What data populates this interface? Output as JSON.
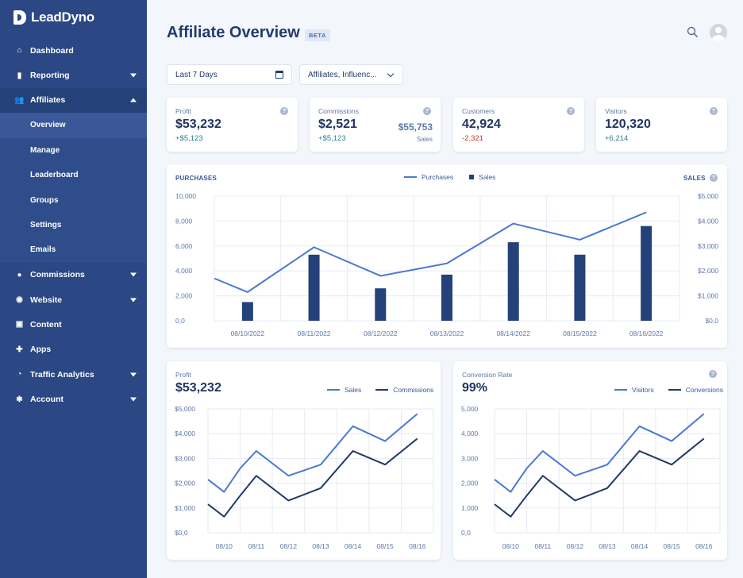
{
  "brand": {
    "name": "LeadDyno"
  },
  "sidebar": {
    "items": [
      {
        "label": "Dashboard",
        "icon": "home-icon",
        "caret": ""
      },
      {
        "label": "Reporting",
        "icon": "bar-chart-icon",
        "caret": "down"
      },
      {
        "label": "Affiliates",
        "icon": "users-icon",
        "caret": "up"
      }
    ],
    "subitems": [
      "Overview",
      "Manage",
      "Leaderboard",
      "Groups",
      "Settings",
      "Emails"
    ],
    "items_after": [
      {
        "label": "Commissions",
        "icon": "dollar-icon",
        "caret": "down"
      },
      {
        "label": "Website",
        "icon": "globe-icon",
        "caret": "down"
      },
      {
        "label": "Content",
        "icon": "image-icon",
        "caret": ""
      },
      {
        "label": "Apps",
        "icon": "puzzle-icon",
        "caret": ""
      },
      {
        "label": "Traffic Analytics",
        "icon": "pie-chart-icon",
        "caret": "down"
      },
      {
        "label": "Account",
        "icon": "gear-icon",
        "caret": "down"
      }
    ]
  },
  "header": {
    "title": "Affiliate Overview",
    "badge": "BETA"
  },
  "filters": {
    "date_range": "Last 7 Days",
    "affiliates": "Affiliates, Influenc..."
  },
  "stats": [
    {
      "label": "Profit",
      "value": "$53,232",
      "delta": "+$5,123",
      "delta_type": "pos"
    },
    {
      "label": "Commissions",
      "value": "$2,521",
      "delta": "+$5,123",
      "delta_type": "pos",
      "side_value": "$55,753",
      "side_label": "Sales"
    },
    {
      "label": "Customers",
      "value": "42,924",
      "delta": "-2,321",
      "delta_type": "neg"
    },
    {
      "label": "Visitors",
      "value": "120,320",
      "delta": "+6,214",
      "delta_type": "pos"
    }
  ],
  "colors": {
    "light_line": "#4b79d0",
    "dark_line": "#23396b",
    "bar": "#25417a",
    "grid": "#e6ebf3",
    "axis_text": "#5f78a6"
  },
  "chart_data": [
    {
      "type": "bar+line",
      "title": "PURCHASES",
      "right_axis_title": "SALES",
      "categories": [
        "08/10/2022",
        "08/11/2022",
        "08/12/2022",
        "08/13/2022",
        "08/14/2022",
        "08/15/2022",
        "08/16/2022"
      ],
      "left_axis": {
        "ticks": [
          "10,000",
          "8,000",
          "6,000",
          "4,000",
          "2,000",
          "0,0"
        ],
        "range": [
          0,
          10000
        ]
      },
      "right_axis": {
        "ticks": [
          "$5,000",
          "$4,000",
          "$3,000",
          "$2,000",
          "$1,000",
          "$0,0"
        ],
        "range": [
          0,
          5000
        ]
      },
      "series": [
        {
          "name": "Purchases",
          "type": "line",
          "x": [
            -0.5,
            0,
            1,
            2,
            3,
            4,
            5,
            6
          ],
          "values": [
            3400,
            2300,
            5900,
            3600,
            4600,
            7800,
            6500,
            8700
          ]
        },
        {
          "name": "Sales",
          "type": "bar",
          "values": [
            750,
            2650,
            1300,
            1850,
            3150,
            2650,
            3800
          ]
        }
      ]
    },
    {
      "type": "line",
      "title": "Profit",
      "headline": "$53,232",
      "categories": [
        "08/10",
        "08/11",
        "08/12",
        "08/13",
        "08/14",
        "08/15",
        "08/16"
      ],
      "y_axis": {
        "ticks": [
          "$5,000",
          "$4,000",
          "$3,000",
          "$2,000",
          "$1,000",
          "$0,0"
        ],
        "range": [
          0,
          5000
        ]
      },
      "x": [
        -0.5,
        0,
        0.5,
        1,
        2,
        3,
        4,
        5,
        6
      ],
      "series": [
        {
          "name": "Sales",
          "values": [
            2150,
            1650,
            2600,
            3300,
            2300,
            2750,
            4300,
            3700,
            4800
          ]
        },
        {
          "name": "Commissions",
          "values": [
            1150,
            650,
            1500,
            2300,
            1300,
            1800,
            3300,
            2750,
            3800
          ]
        }
      ]
    },
    {
      "type": "line",
      "title": "Conversion Rate",
      "headline": "99%",
      "categories": [
        "08/10",
        "08/11",
        "08/12",
        "08/13",
        "08/14",
        "08/15",
        "08/16"
      ],
      "y_axis": {
        "ticks": [
          "5,000",
          "4,000",
          "3,000",
          "2,000",
          "1,000",
          "0,0"
        ],
        "range": [
          0,
          5000
        ]
      },
      "x": [
        -0.5,
        0,
        0.5,
        1,
        2,
        3,
        4,
        5,
        6
      ],
      "series": [
        {
          "name": "Visitors",
          "values": [
            2150,
            1650,
            2600,
            3300,
            2300,
            2750,
            4300,
            3700,
            4800
          ]
        },
        {
          "name": "Conversions",
          "values": [
            1150,
            650,
            1500,
            2300,
            1300,
            1800,
            3300,
            2750,
            3800
          ]
        }
      ]
    }
  ]
}
